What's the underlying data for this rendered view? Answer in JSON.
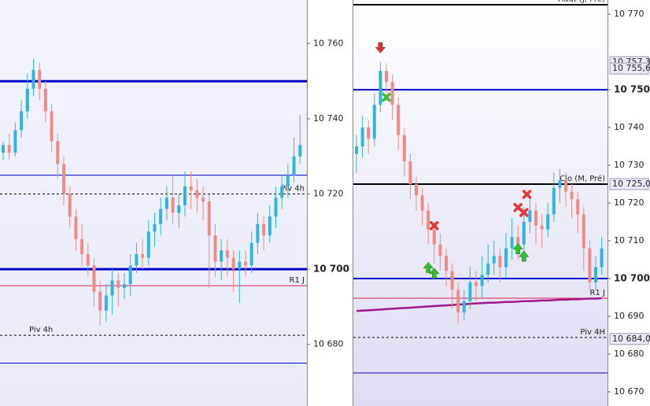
{
  "chart_data": [
    {
      "type": "candlestick",
      "ylim": [
        10663.6,
        10771.6
      ],
      "yticks": [
        {
          "value": 10760,
          "label": "10 760"
        },
        {
          "value": 10740,
          "label": "10 740"
        },
        {
          "value": 10720,
          "label": "10 720"
        },
        {
          "value": 10700,
          "label": "10 700",
          "bold": true
        },
        {
          "value": 10680,
          "label": "10 680"
        }
      ],
      "up_color": "#2fb4e0",
      "down_color": "#f08a86",
      "levels": [
        {
          "value": 10750,
          "color": "#0000cc",
          "width": 3
        },
        {
          "value": 10725,
          "color": "#0000cc",
          "width": 1
        },
        {
          "value": 10720,
          "color": "#000000",
          "width": 1,
          "dash": true,
          "label": "Piv 4h",
          "label_align": "right"
        },
        {
          "value": 10700,
          "color": "#0000cc",
          "width": 3
        },
        {
          "value": 10695.6,
          "color": "#e0204a",
          "width": 1,
          "label": "R1 J",
          "label_align": "right"
        },
        {
          "value": 10682.4,
          "color": "#000000",
          "width": 1,
          "dash": true,
          "label": "Piv 4h",
          "label_align": "left"
        },
        {
          "value": 10675,
          "color": "#0000cc",
          "width": 1
        }
      ],
      "ohlc": [
        [
          10731,
          10734,
          10729,
          10733
        ],
        [
          10733,
          10736,
          10729,
          10731
        ],
        [
          10731,
          10739,
          10730,
          10737
        ],
        [
          10737,
          10745,
          10735,
          10742
        ],
        [
          10742,
          10752,
          10740,
          10748
        ],
        [
          10748,
          10756,
          10746,
          10753
        ],
        [
          10753,
          10755,
          10745,
          10748
        ],
        [
          10748,
          10750,
          10739,
          10742
        ],
        [
          10742,
          10744,
          10731,
          10734
        ],
        [
          10734,
          10736,
          10724,
          10728
        ],
        [
          10728,
          10730,
          10717,
          10720
        ],
        [
          10720,
          10722,
          10711,
          10714
        ],
        [
          10714,
          10716,
          10705,
          10708
        ],
        [
          10708,
          10712,
          10701,
          10704
        ],
        [
          10704,
          10707,
          10698,
          10701
        ],
        [
          10701,
          10703,
          10690,
          10694
        ],
        [
          10694,
          10697,
          10685,
          10689
        ],
        [
          10689,
          10696,
          10686,
          10693
        ],
        [
          10693,
          10700,
          10688,
          10697
        ],
        [
          10697,
          10699,
          10690,
          10695
        ],
        [
          10695,
          10699,
          10692,
          10696
        ],
        [
          10696,
          10704,
          10693,
          10701
        ],
        [
          10701,
          10707,
          10699,
          10704
        ],
        [
          10704,
          10708,
          10700,
          10703
        ],
        [
          10703,
          10713,
          10701,
          10710
        ],
        [
          10710,
          10715,
          10706,
          10712
        ],
        [
          10712,
          10719,
          10709,
          10716
        ],
        [
          10716,
          10722,
          10713,
          10719
        ],
        [
          10719,
          10725,
          10712,
          10715
        ],
        [
          10715,
          10720,
          10711,
          10717
        ],
        [
          10717,
          10726,
          10714,
          10722
        ],
        [
          10722,
          10726,
          10716,
          10721
        ],
        [
          10721,
          10724,
          10715,
          10719
        ],
        [
          10719,
          10722,
          10713,
          10718
        ],
        [
          10718,
          10720,
          10695,
          10709
        ],
        [
          10709,
          10712,
          10698,
          10702
        ],
        [
          10702,
          10708,
          10697,
          10705
        ],
        [
          10705,
          10708,
          10698,
          10703
        ],
        [
          10703,
          10705,
          10694,
          10700
        ],
        [
          10700,
          10705,
          10691,
          10702
        ],
        [
          10702,
          10705,
          10698,
          10701
        ],
        [
          10701,
          10710,
          10699,
          10707
        ],
        [
          10707,
          10715,
          10704,
          10712
        ],
        [
          10712,
          10714,
          10705,
          10709
        ],
        [
          10709,
          10717,
          10707,
          10714
        ],
        [
          10714,
          10722,
          10711,
          10719
        ],
        [
          10719,
          10725,
          10716,
          10722
        ],
        [
          10722,
          10728,
          10719,
          10725
        ],
        [
          10725,
          10735,
          10723,
          10730
        ],
        [
          10730,
          10741,
          10728,
          10733
        ]
      ]
    },
    {
      "type": "candlestick",
      "ylim": [
        10666.25,
        10773.75
      ],
      "yticks": [
        {
          "value": 10770,
          "label": "10 770"
        },
        {
          "value": 10750,
          "label": "10 750",
          "bold": true
        },
        {
          "value": 10740,
          "label": "10 740"
        },
        {
          "value": 10730,
          "label": "10 730"
        },
        {
          "value": 10720,
          "label": "10 720"
        },
        {
          "value": 10710,
          "label": "10 710"
        },
        {
          "value": 10700,
          "label": "10 700",
          "bold": true
        },
        {
          "value": 10690,
          "label": "10 690"
        },
        {
          "value": 10680,
          "label": "10 680"
        },
        {
          "value": 10670,
          "label": "10 670"
        }
      ],
      "up_color": "#2fb4e0",
      "down_color": "#f08a86",
      "levels": [
        {
          "value": 10772.5,
          "color": "#000000",
          "width": 2,
          "label": "Haut (J, Pré)",
          "label_align": "right"
        },
        {
          "value": 10750,
          "color": "#0000cc",
          "width": 2
        },
        {
          "value": 10725,
          "color": "#000000",
          "width": 2,
          "label": "Clo (M, Pré)",
          "label_align": "right"
        },
        {
          "value": 10700,
          "color": "#0000cc",
          "width": 2
        },
        {
          "value": 10694.8,
          "color": "#e0204a",
          "width": 1,
          "label": "R1 J",
          "label_align": "right"
        },
        {
          "value": 10684.4,
          "color": "#000000",
          "width": 1,
          "dash": true,
          "label": "Piv 4H",
          "label_align": "right"
        },
        {
          "value": 10675,
          "color": "#0000cc",
          "width": 1
        }
      ],
      "price_tags": [
        {
          "value": 10757.3,
          "label": "10 757,3"
        },
        {
          "value": 10755.6,
          "label": "10 755,6"
        },
        {
          "value": 10725,
          "label": "10 725,0"
        },
        {
          "value": 10684,
          "label": "10 684,0"
        }
      ],
      "ohlc": [
        [
          10733,
          10738,
          10728,
          10735
        ],
        [
          10735,
          10743,
          10732,
          10740
        ],
        [
          10740,
          10742,
          10733,
          10737
        ],
        [
          10737,
          10749,
          10735,
          10746
        ],
        [
          10746,
          10757.3,
          10744,
          10755
        ],
        [
          10755,
          10757,
          10747,
          10752
        ],
        [
          10752,
          10754,
          10742,
          10746
        ],
        [
          10746,
          10748,
          10734,
          10738
        ],
        [
          10738,
          10740,
          10727,
          10731
        ],
        [
          10731,
          10733,
          10721,
          10725
        ],
        [
          10725,
          10727,
          10718,
          10722
        ],
        [
          10722,
          10724,
          10714,
          10718
        ],
        [
          10718,
          10720,
          10709,
          10713
        ],
        [
          10713,
          10715,
          10704,
          10709
        ],
        [
          10709,
          10712,
          10702,
          10706
        ],
        [
          10706,
          10708,
          10698,
          10702
        ],
        [
          10702,
          10704,
          10692,
          10697
        ],
        [
          10697,
          10699,
          10688,
          10691
        ],
        [
          10691,
          10697,
          10689,
          10694
        ],
        [
          10694,
          10703,
          10692,
          10699
        ],
        [
          10699,
          10702,
          10694,
          10698
        ],
        [
          10698,
          10706,
          10695,
          10701
        ],
        [
          10701,
          10709,
          10699,
          10704
        ],
        [
          10704,
          10710,
          10701,
          10706
        ],
        [
          10706,
          10708,
          10699,
          10703
        ],
        [
          10703,
          10712,
          10700,
          10708
        ],
        [
          10708,
          10716,
          10705,
          10711
        ],
        [
          10711,
          10714,
          10705,
          10709
        ],
        [
          10709,
          10719,
          10707,
          10715
        ],
        [
          10715,
          10722,
          10712,
          10718
        ],
        [
          10718,
          10720,
          10709,
          10714
        ],
        [
          10714,
          10717,
          10708,
          10713
        ],
        [
          10713,
          10720,
          10711,
          10717
        ],
        [
          10717,
          10728,
          10715,
          10724
        ],
        [
          10724,
          10729,
          10720,
          10726
        ],
        [
          10726,
          10728,
          10719,
          10723
        ],
        [
          10723,
          10725,
          10716,
          10721
        ],
        [
          10721,
          10723,
          10712,
          10717
        ],
        [
          10717,
          10719,
          10702,
          10708
        ],
        [
          10708,
          10710,
          10697,
          10699
        ],
        [
          10699,
          10706,
          10697,
          10703
        ],
        [
          10703,
          10711,
          10701,
          10708
        ]
      ],
      "ma": {
        "color": "#a0168c",
        "values": [
          10691.4,
          10691.5,
          10691.6,
          10691.7,
          10691.8,
          10691.9,
          10692.0,
          10692.1,
          10692.2,
          10692.3,
          10692.4,
          10692.5,
          10692.6,
          10692.7,
          10692.8,
          10692.9,
          10693.0,
          10693.1,
          10693.2,
          10693.3,
          10693.4,
          10693.5,
          10693.6,
          10693.6,
          10693.7,
          10693.8,
          10693.8,
          10693.9,
          10694.0,
          10694.0,
          10694.1,
          10694.2,
          10694.2,
          10694.3,
          10694.4,
          10694.4,
          10694.5,
          10694.5,
          10694.6,
          10694.7,
          10694.7,
          10694.8
        ]
      },
      "signals": [
        {
          "kind": "sell-arrow",
          "index": 4,
          "value": 10761
        },
        {
          "kind": "green-cross",
          "index": 5,
          "value": 10748
        },
        {
          "kind": "red-cross",
          "index": 13,
          "value": 10714
        },
        {
          "kind": "buy-arrow",
          "index": 12,
          "value": 10703
        },
        {
          "kind": "buy-arrow",
          "index": 13,
          "value": 10701.5
        },
        {
          "kind": "red-cross",
          "index": 27,
          "value": 10718.8
        },
        {
          "kind": "red-cross",
          "index": 28,
          "value": 10717.5
        },
        {
          "kind": "red-cross",
          "index": 28.5,
          "value": 10722.3
        },
        {
          "kind": "buy-arrow",
          "index": 27,
          "value": 10708
        },
        {
          "kind": "buy-arrow",
          "index": 28,
          "value": 10706
        }
      ]
    }
  ]
}
